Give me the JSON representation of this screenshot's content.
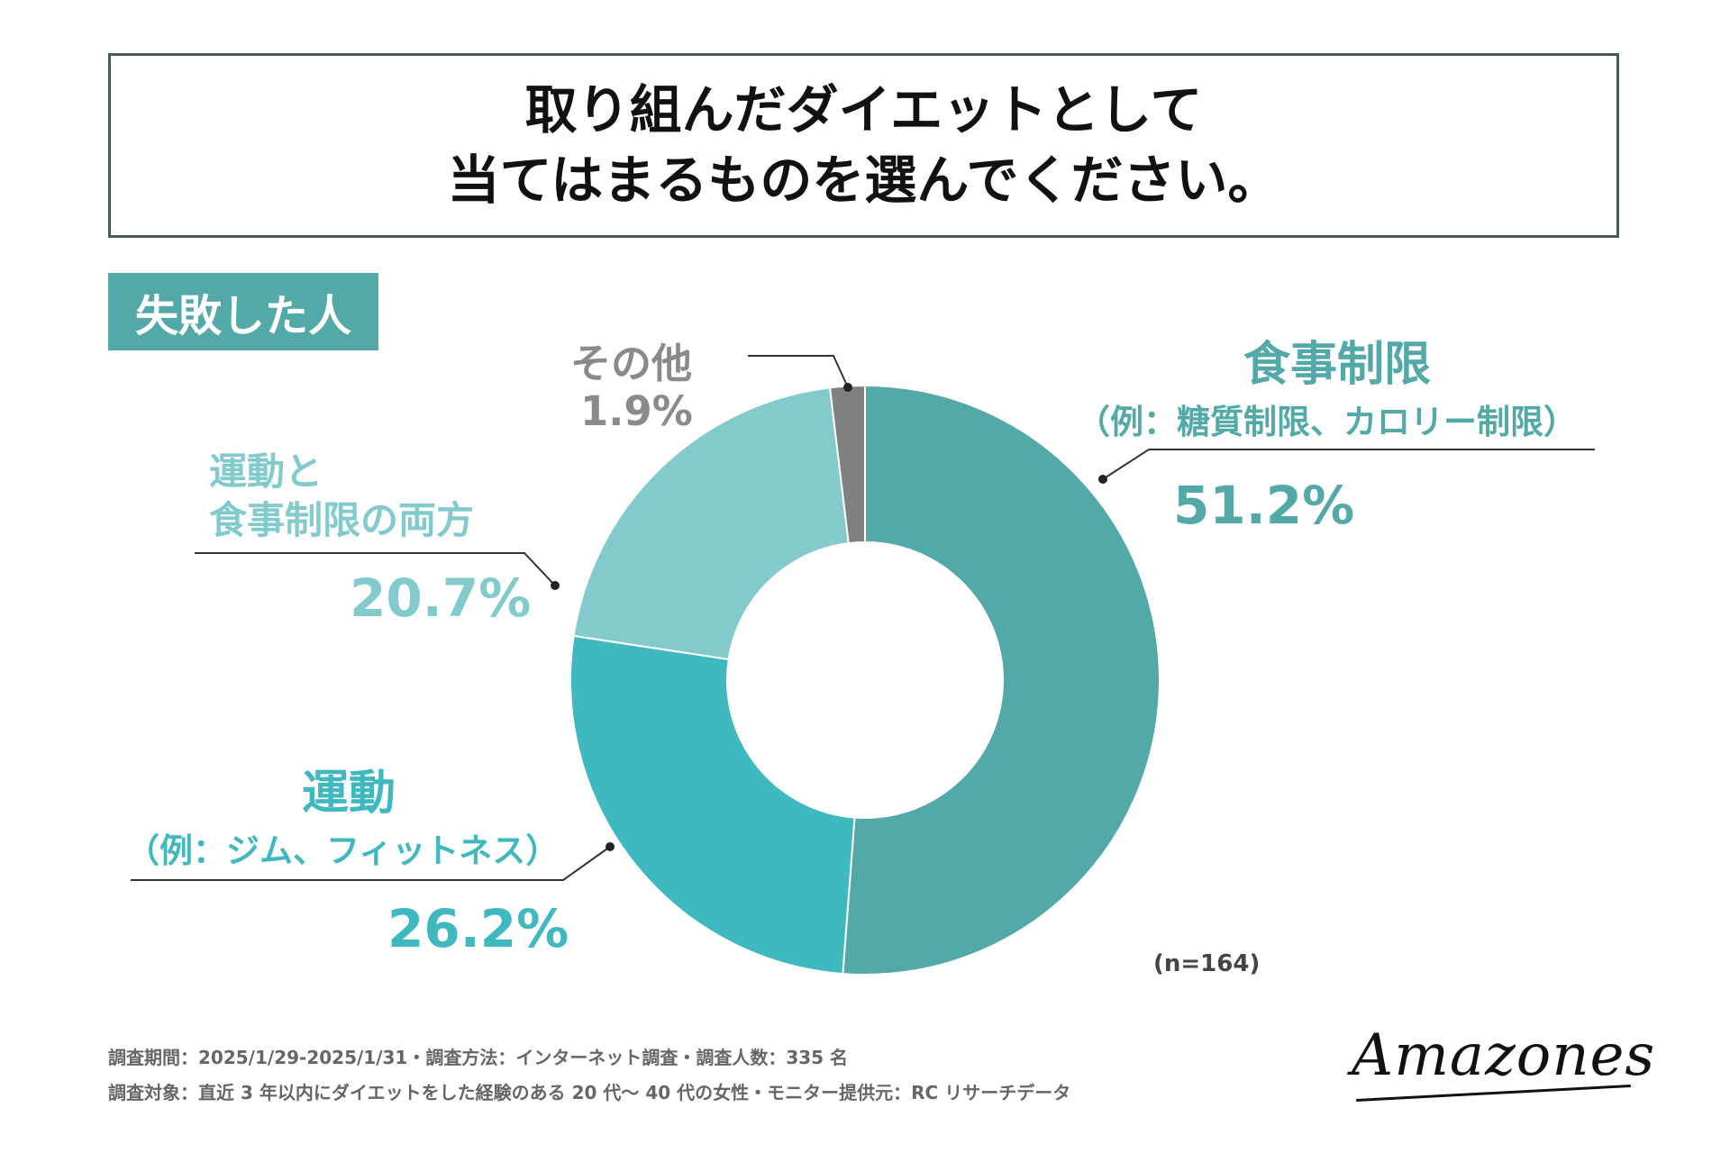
{
  "question": {
    "line1": "取り組んだダイエットとして",
    "line2": "当てはまるものを選んでください。"
  },
  "segment_label": "失敗した人",
  "colors": {
    "diet": "#53a8a8",
    "exercise": "#40b8bf",
    "both": "#82cacb",
    "other": "#808080",
    "badge": "#53a8a8",
    "other_text": "#8a8a8a"
  },
  "chart_data": {
    "type": "pie",
    "subtype": "donut",
    "title": "取り組んだダイエットとして当てはまるものを選んでください。",
    "start": "12 o'clock, clockwise",
    "slices": [
      {
        "name": "食事制限",
        "detail": "（例：糖質制限、カロリー制限）",
        "value": 51.2,
        "label": "51.2%"
      },
      {
        "name": "運動",
        "detail": "（例：ジム、フィットネス）",
        "value": 26.2,
        "label": "26.2%"
      },
      {
        "name_line1": "運動と",
        "name_line2": "食事制限の両方",
        "value": 20.7,
        "label": "20.7%"
      },
      {
        "name": "その他",
        "value": 1.9,
        "label": "1.9%"
      }
    ],
    "n_label": "(n=164)"
  },
  "footer": {
    "line1": "調査期間：2025/1/29-2025/1/31・調査方法：インターネット調査・調査人数：335 名",
    "line2": "調査対象：直近 3 年以内にダイエットをした経験のある 20 代〜 40 代の女性・モニター提供元：RC リサーチデータ"
  },
  "logo_text": "Amazones"
}
